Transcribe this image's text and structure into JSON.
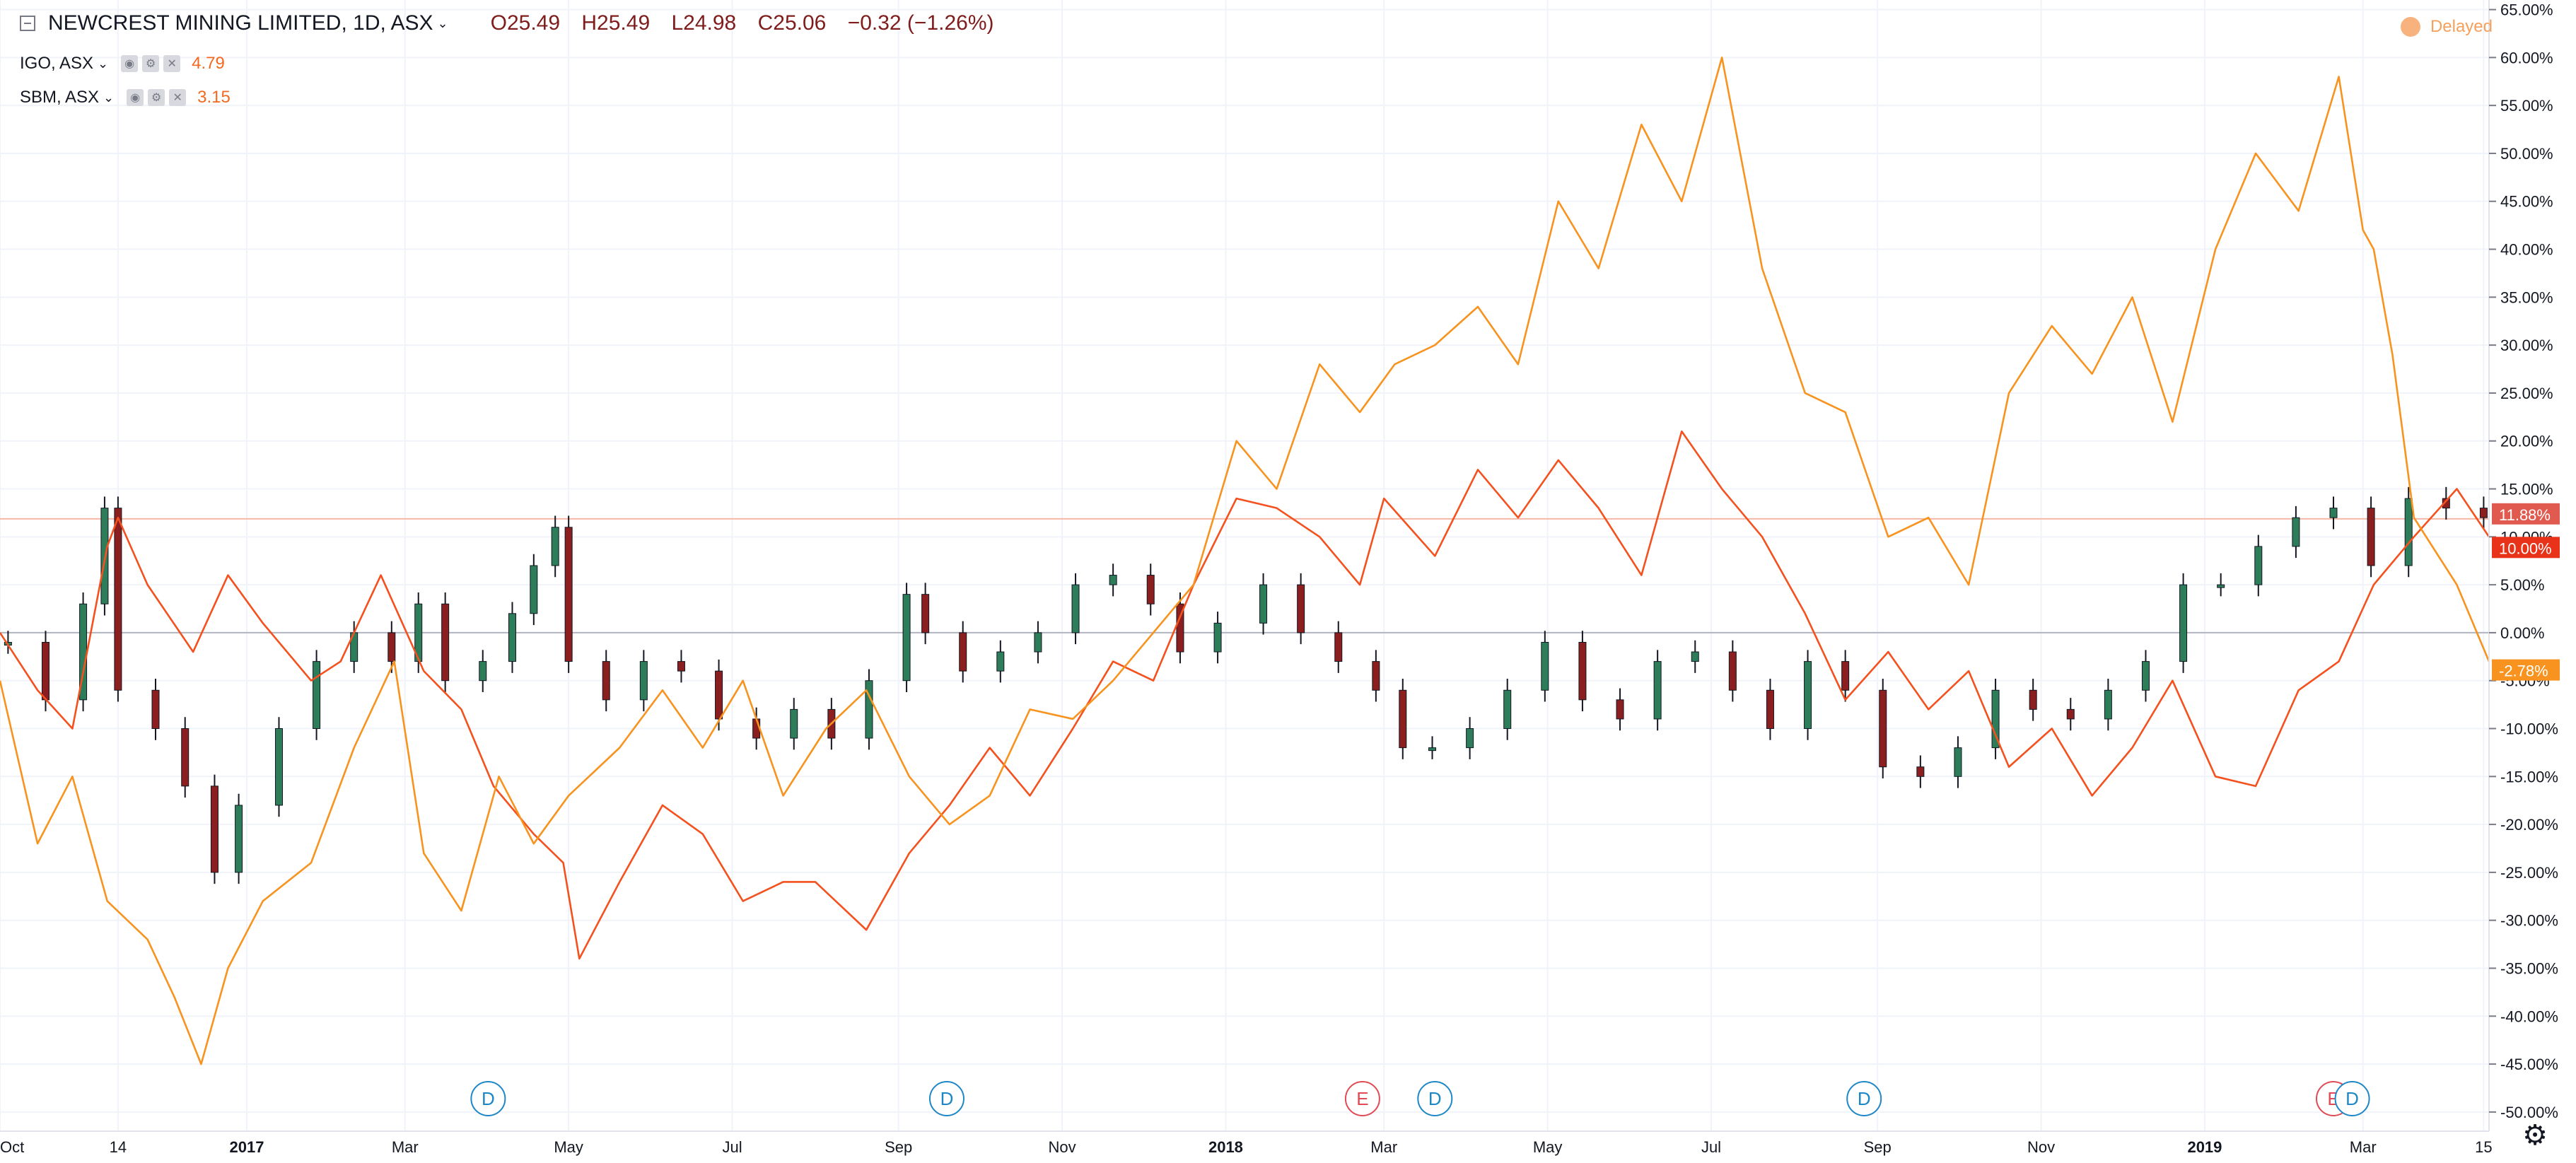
{
  "legend": {
    "main_symbol": "NEWCREST MINING LIMITED, 1D, ASX",
    "open": "O25.49",
    "high": "H25.49",
    "low": "L24.98",
    "close": "C25.06",
    "change": "−0.32 (−1.26%)",
    "compare": [
      {
        "label": "IGO, ASX",
        "value": "4.79"
      },
      {
        "label": "SBM, ASX",
        "value": "3.15"
      }
    ]
  },
  "status": {
    "delayed": "Delayed"
  },
  "colors": {
    "up": "#26a69a",
    "up_body": "#2e7d5a",
    "down": "#ef5350",
    "down_body": "#8b1e1e",
    "igo_line": "#f4511e",
    "sbm_line": "#f7931e",
    "grid": "#f0f3fa",
    "axis_text": "#131722",
    "dividend": "#1e88c7",
    "earnings": "#e04b55"
  },
  "chart_data": {
    "type": "line",
    "title": "NEWCREST MINING LIMITED, 1D, ASX",
    "y_unit": "%",
    "ylim": [
      -52,
      66
    ],
    "y_ticks": [
      65,
      60,
      55,
      50,
      45,
      40,
      35,
      30,
      25,
      20,
      15,
      10,
      5,
      0,
      -5,
      -10,
      -15,
      -20,
      -25,
      -30,
      -35,
      -40,
      -45,
      -50
    ],
    "y_tick_labels": [
      "65.00%",
      "60.00%",
      "55.00%",
      "50.00%",
      "45.00%",
      "40.00%",
      "35.00%",
      "30.00%",
      "25.00%",
      "20.00%",
      "15.00%",
      "10.00%",
      "5.00%",
      "0.00%",
      "-5.00%",
      "-10.00%",
      "-15.00%",
      "-20.00%",
      "-25.00%",
      "-30.00%",
      "-35.00%",
      "-40.00%",
      "-45.00%",
      "-50.00%"
    ],
    "x_range": [
      "2016-10-01",
      "2019-04-17"
    ],
    "x_ticks": [
      {
        "date": "2016-10-01",
        "label": "Oct",
        "bold": false
      },
      {
        "date": "2016-11-14",
        "label": "14",
        "bold": false
      },
      {
        "date": "2017-01-01",
        "label": "2017",
        "bold": true
      },
      {
        "date": "2017-03-01",
        "label": "Mar",
        "bold": false
      },
      {
        "date": "2017-05-01",
        "label": "May",
        "bold": false
      },
      {
        "date": "2017-07-01",
        "label": "Jul",
        "bold": false
      },
      {
        "date": "2017-09-01",
        "label": "Sep",
        "bold": false
      },
      {
        "date": "2017-11-01",
        "label": "Nov",
        "bold": false
      },
      {
        "date": "2018-01-01",
        "label": "2018",
        "bold": true
      },
      {
        "date": "2018-03-01",
        "label": "Mar",
        "bold": false
      },
      {
        "date": "2018-05-01",
        "label": "May",
        "bold": false
      },
      {
        "date": "2018-07-01",
        "label": "Jul",
        "bold": false
      },
      {
        "date": "2018-09-01",
        "label": "Sep",
        "bold": false
      },
      {
        "date": "2018-11-01",
        "label": "Nov",
        "bold": false
      },
      {
        "date": "2019-01-01",
        "label": "2019",
        "bold": true
      },
      {
        "date": "2019-03-01",
        "label": "Mar",
        "bold": false
      },
      {
        "date": "2019-04-15",
        "label": "15",
        "bold": false
      }
    ],
    "series": [
      {
        "name": "NEWCREST MINING LIMITED, 1D, ASX",
        "style": "candles",
        "dates": [
          "2016-10-04",
          "2016-10-18",
          "2016-11-01",
          "2016-11-09",
          "2016-11-14",
          "2016-11-28",
          "2016-12-09",
          "2016-12-20",
          "2016-12-29",
          "2017-01-13",
          "2017-01-27",
          "2017-02-10",
          "2017-02-24",
          "2017-03-06",
          "2017-03-16",
          "2017-03-30",
          "2017-04-10",
          "2017-04-18",
          "2017-04-26",
          "2017-05-01",
          "2017-05-15",
          "2017-05-29",
          "2017-06-12",
          "2017-06-26",
          "2017-07-10",
          "2017-07-24",
          "2017-08-07",
          "2017-08-21",
          "2017-09-04",
          "2017-09-11",
          "2017-09-25",
          "2017-10-09",
          "2017-10-23",
          "2017-11-06",
          "2017-11-20",
          "2017-12-04",
          "2017-12-15",
          "2017-12-29",
          "2018-01-15",
          "2018-01-29",
          "2018-02-12",
          "2018-02-26",
          "2018-03-08",
          "2018-03-19",
          "2018-04-02",
          "2018-04-16",
          "2018-04-30",
          "2018-05-14",
          "2018-05-28",
          "2018-06-11",
          "2018-06-25",
          "2018-07-09",
          "2018-07-23",
          "2018-08-06",
          "2018-08-20",
          "2018-09-03",
          "2018-09-17",
          "2018-10-01",
          "2018-10-15",
          "2018-10-29",
          "2018-11-12",
          "2018-11-26",
          "2018-12-10",
          "2018-12-24",
          "2019-01-07",
          "2019-01-21",
          "2019-02-04",
          "2019-02-18",
          "2019-03-04",
          "2019-03-18",
          "2019-04-01",
          "2019-04-15"
        ],
        "values": [
          -1,
          -7,
          3,
          13,
          -6,
          -10,
          -16,
          -25,
          -18,
          -10,
          -3,
          0,
          -3,
          3,
          -5,
          -3,
          2,
          7,
          11,
          -3,
          -7,
          -3,
          -4,
          -9,
          -11,
          -8,
          -11,
          -5,
          4,
          0,
          -4,
          -2,
          0,
          5,
          6,
          3,
          -2,
          1,
          5,
          0,
          -3,
          -6,
          -12,
          -12,
          -10,
          -6,
          -1,
          -7,
          -9,
          -3,
          -2,
          -6,
          -10,
          -3,
          -6,
          -14,
          -15,
          -12,
          -6,
          -8,
          -9,
          -6,
          -3,
          5,
          5,
          9,
          12,
          13,
          7,
          14,
          13,
          12
        ]
      },
      {
        "name": "IGO, ASX",
        "style": "line",
        "last_label": "10.00%",
        "dates": [
          "2016-10-01",
          "2016-10-15",
          "2016-10-28",
          "2016-11-10",
          "2016-11-14",
          "2016-11-25",
          "2016-12-12",
          "2016-12-25",
          "2017-01-07",
          "2017-01-25",
          "2017-02-05",
          "2017-02-20",
          "2017-03-08",
          "2017-03-22",
          "2017-04-03",
          "2017-04-18",
          "2017-04-29",
          "2017-05-05",
          "2017-05-20",
          "2017-06-05",
          "2017-06-20",
          "2017-07-05",
          "2017-07-20",
          "2017-08-01",
          "2017-08-20",
          "2017-09-05",
          "2017-09-20",
          "2017-10-05",
          "2017-10-20",
          "2017-11-05",
          "2017-11-20",
          "2017-12-05",
          "2017-12-20",
          "2018-01-05",
          "2018-01-20",
          "2018-02-05",
          "2018-02-20",
          "2018-03-01",
          "2018-03-20",
          "2018-04-05",
          "2018-04-20",
          "2018-05-05",
          "2018-05-20",
          "2018-06-05",
          "2018-06-20",
          "2018-07-05",
          "2018-07-20",
          "2018-08-05",
          "2018-08-20",
          "2018-09-05",
          "2018-09-20",
          "2018-10-05",
          "2018-10-20",
          "2018-11-05",
          "2018-11-20",
          "2018-12-05",
          "2018-12-20",
          "2019-01-05",
          "2019-01-20",
          "2019-02-05",
          "2019-02-20",
          "2019-03-05",
          "2019-03-20",
          "2019-04-05",
          "2019-04-17"
        ],
        "values": [
          0,
          -6,
          -10,
          9,
          12,
          5,
          -2,
          6,
          1,
          -5,
          -3,
          6,
          -4,
          -8,
          -16,
          -21,
          -24,
          -34,
          -26,
          -18,
          -21,
          -28,
          -26,
          -26,
          -31,
          -23,
          -18,
          -12,
          -17,
          -10,
          -3,
          -5,
          5,
          14,
          13,
          10,
          5,
          14,
          8,
          17,
          12,
          18,
          13,
          6,
          21,
          15,
          10,
          2,
          -7,
          -2,
          -8,
          -4,
          -14,
          -10,
          -17,
          -12,
          -5,
          -15,
          -16,
          -6,
          -3,
          5,
          10,
          15,
          10
        ]
      },
      {
        "name": "SBM, ASX",
        "style": "line",
        "last_label": "-2.78%",
        "dates": [
          "2016-10-01",
          "2016-10-15",
          "2016-10-28",
          "2016-11-10",
          "2016-11-25",
          "2016-12-05",
          "2016-12-15",
          "2016-12-25",
          "2017-01-07",
          "2017-01-25",
          "2017-02-10",
          "2017-02-25",
          "2017-03-08",
          "2017-03-22",
          "2017-04-05",
          "2017-04-18",
          "2017-05-01",
          "2017-05-20",
          "2017-06-05",
          "2017-06-20",
          "2017-07-05",
          "2017-07-20",
          "2017-08-05",
          "2017-08-20",
          "2017-09-05",
          "2017-09-20",
          "2017-10-05",
          "2017-10-20",
          "2017-11-05",
          "2017-11-20",
          "2017-12-05",
          "2017-12-20",
          "2018-01-05",
          "2018-01-20",
          "2018-02-05",
          "2018-02-20",
          "2018-03-05",
          "2018-03-20",
          "2018-04-05",
          "2018-04-20",
          "2018-05-05",
          "2018-05-20",
          "2018-06-05",
          "2018-06-20",
          "2018-07-05",
          "2018-07-20",
          "2018-08-05",
          "2018-08-20",
          "2018-09-05",
          "2018-09-20",
          "2018-10-05",
          "2018-10-20",
          "2018-11-05",
          "2018-11-20",
          "2018-12-05",
          "2018-12-20",
          "2019-01-05",
          "2019-01-20",
          "2019-02-05",
          "2019-02-20",
          "2019-03-01",
          "2019-03-05",
          "2019-03-12",
          "2019-03-20",
          "2019-04-05",
          "2019-04-17"
        ],
        "values": [
          -5,
          -22,
          -15,
          -28,
          -32,
          -38,
          -45,
          -35,
          -28,
          -24,
          -12,
          -3,
          -23,
          -29,
          -15,
          -22,
          -17,
          -12,
          -6,
          -12,
          -5,
          -17,
          -10,
          -6,
          -15,
          -20,
          -17,
          -8,
          -9,
          -5,
          0,
          5,
          20,
          15,
          28,
          23,
          28,
          30,
          34,
          28,
          45,
          38,
          53,
          45,
          60,
          38,
          25,
          23,
          10,
          12,
          5,
          25,
          32,
          27,
          35,
          22,
          40,
          50,
          44,
          58,
          42,
          40,
          29,
          12,
          5,
          -3
        ]
      }
    ],
    "reference_lines": [
      {
        "value": 0,
        "label": "0.00%"
      },
      {
        "value": 11.88,
        "label": "11.88%"
      }
    ],
    "events": [
      {
        "date": "2017-04-01",
        "label": "D",
        "kind": "dividend"
      },
      {
        "date": "2017-09-19",
        "label": "D",
        "kind": "dividend"
      },
      {
        "date": "2018-02-21",
        "label": "E",
        "kind": "earnings"
      },
      {
        "date": "2018-03-20",
        "label": "D",
        "kind": "dividend"
      },
      {
        "date": "2018-08-27",
        "label": "D",
        "kind": "dividend"
      },
      {
        "date": "2019-02-18",
        "label": "E",
        "kind": "earnings"
      },
      {
        "date": "2019-02-25",
        "label": "D",
        "kind": "dividend"
      }
    ],
    "grid": true,
    "legend_position": "top-left"
  }
}
